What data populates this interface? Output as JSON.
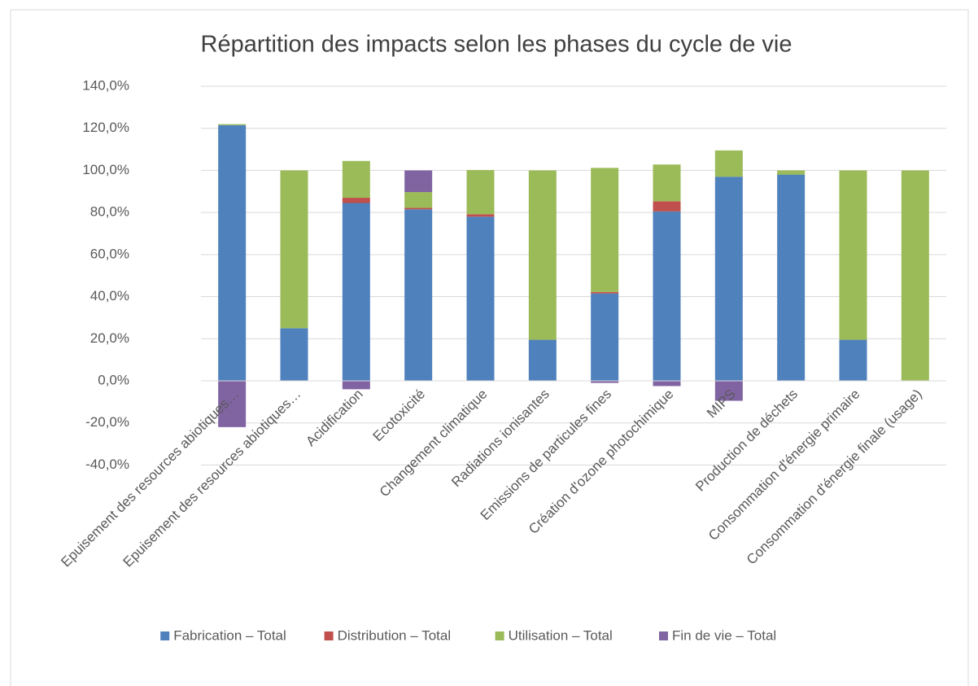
{
  "chart_data": {
    "type": "stacked_bar",
    "title": "Répartition des impacts selon les phases du cycle de vie",
    "categories": [
      "Epuisement des resources abiotiques…",
      "Epuisement des resources abiotiques…",
      "Acidification",
      "Ecotoxicité",
      "Changement climatique",
      "Radiations ionisantes",
      "Emissions de particules fines",
      "Création d'ozone photochimique",
      "MIPS",
      "Production de déchets",
      "Consommation d'énergie primaire",
      "Consommation d'énergie finale (usage)"
    ],
    "series": [
      {
        "name": "Fabrication – Total",
        "color": "#4f81bd",
        "values": [
          121.5,
          25,
          84.5,
          81.5,
          78,
          19.5,
          41.5,
          80.5,
          97,
          98,
          19.5,
          0
        ]
      },
      {
        "name": "Distribution – Total",
        "color": "#c0504d",
        "values": [
          0,
          0,
          2.5,
          0.7,
          1.2,
          0,
          0.7,
          4.8,
          0,
          0,
          0,
          0
        ]
      },
      {
        "name": "Utilisation – Total",
        "color": "#9bbb59",
        "values": [
          0.5,
          75,
          17.5,
          7.5,
          21,
          80.5,
          59,
          17.5,
          12.5,
          2,
          80.5,
          100
        ]
      },
      {
        "name": "Fin de vie – Total",
        "color": "#8064a2",
        "values": [
          -22,
          0,
          -4,
          10.3,
          0,
          0,
          -1,
          -2.5,
          -9.5,
          0,
          0,
          0
        ]
      }
    ],
    "ylim": [
      -40,
      140
    ],
    "yticks": [
      {
        "value": -40,
        "label": "-40,0%"
      },
      {
        "value": -20,
        "label": "-20,0%"
      },
      {
        "value": 0,
        "label": "0,0%"
      },
      {
        "value": 20,
        "label": "20,0%"
      },
      {
        "value": 40,
        "label": "40,0%"
      },
      {
        "value": 60,
        "label": "60,0%"
      },
      {
        "value": 80,
        "label": "80,0%"
      },
      {
        "value": 100,
        "label": "100,0%"
      },
      {
        "value": 120,
        "label": "120,0%"
      },
      {
        "value": 140,
        "label": "140,0%"
      }
    ],
    "grid": true,
    "legend": "bottom"
  }
}
